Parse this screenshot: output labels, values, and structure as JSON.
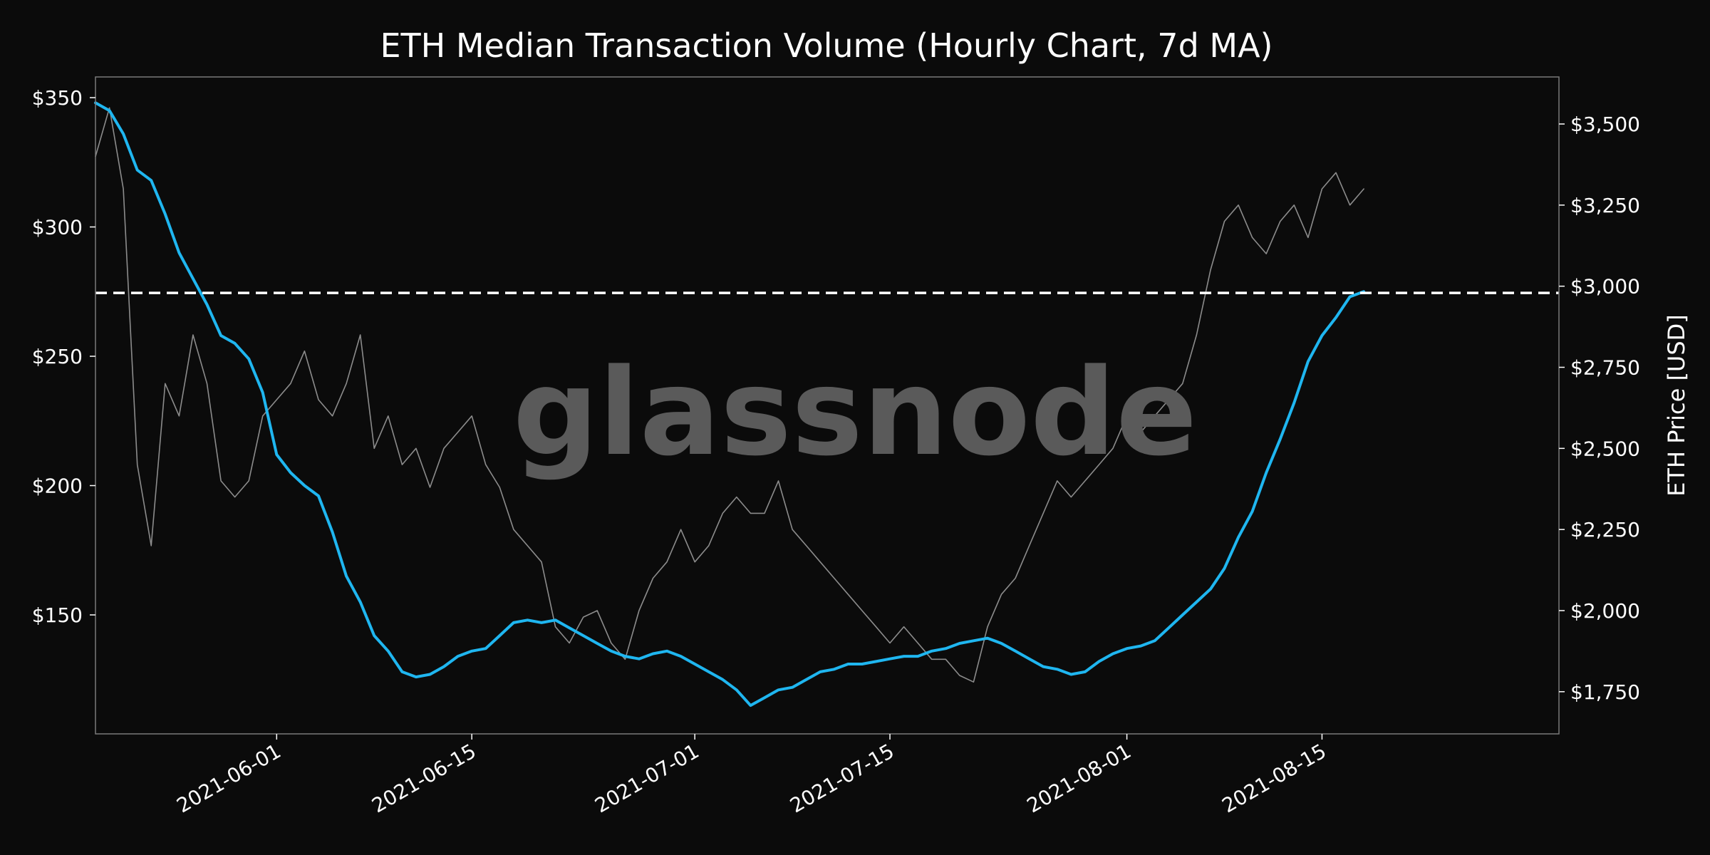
{
  "colors": {
    "background": "#0b0b0b",
    "volume_line": "#1fb6f0",
    "price_line": "#8c8c8c",
    "threshold_line": "#ffffff",
    "text": "#ffffff",
    "frame": "#7a7a7a",
    "watermark": "#5a5a5a"
  },
  "watermark": "glassnode",
  "chart_data": {
    "type": "line",
    "title": "ETH Median Transaction Volume (Hourly Chart, 7d MA)",
    "xlabel": "",
    "y_left_label": "",
    "y_right_label": "ETH Price [USD]",
    "x_range": [
      "2021-05-19",
      "2021-09-01"
    ],
    "y_left_range": [
      104,
      358
    ],
    "y_right_range": [
      1620,
      3645
    ],
    "x_ticks": [
      "2021-06-01",
      "2021-06-15",
      "2021-07-01",
      "2021-07-15",
      "2021-08-01",
      "2021-08-15"
    ],
    "y_left_ticks": [
      {
        "value": 150,
        "label": "$150"
      },
      {
        "value": 200,
        "label": "$200"
      },
      {
        "value": 250,
        "label": "$250"
      },
      {
        "value": 300,
        "label": "$300"
      },
      {
        "value": 350,
        "label": "$350"
      }
    ],
    "y_right_ticks": [
      {
        "value": 1750,
        "label": "$1,750"
      },
      {
        "value": 2000,
        "label": "$2,000"
      },
      {
        "value": 2250,
        "label": "$2,250"
      },
      {
        "value": 2500,
        "label": "$2,500"
      },
      {
        "value": 2750,
        "label": "$2,750"
      },
      {
        "value": 3000,
        "label": "$3,000"
      },
      {
        "value": 3250,
        "label": "$3,250"
      },
      {
        "value": 3500,
        "label": "$3,500"
      }
    ],
    "threshold": {
      "value": 274.5,
      "axis": "left",
      "style": "dashed"
    },
    "grid": false,
    "series": [
      {
        "role": "volume",
        "axis": "left",
        "x": [
          "2021-05-19",
          "2021-05-20",
          "2021-05-21",
          "2021-05-22",
          "2021-05-23",
          "2021-05-24",
          "2021-05-25",
          "2021-05-26",
          "2021-05-27",
          "2021-05-28",
          "2021-05-29",
          "2021-05-30",
          "2021-05-31",
          "2021-06-01",
          "2021-06-02",
          "2021-06-03",
          "2021-06-04",
          "2021-06-05",
          "2021-06-06",
          "2021-06-07",
          "2021-06-08",
          "2021-06-09",
          "2021-06-10",
          "2021-06-11",
          "2021-06-12",
          "2021-06-13",
          "2021-06-14",
          "2021-06-15",
          "2021-06-16",
          "2021-06-17",
          "2021-06-18",
          "2021-06-19",
          "2021-06-20",
          "2021-06-21",
          "2021-06-22",
          "2021-06-23",
          "2021-06-24",
          "2021-06-25",
          "2021-06-26",
          "2021-06-27",
          "2021-06-28",
          "2021-06-29",
          "2021-06-30",
          "2021-07-01",
          "2021-07-02",
          "2021-07-03",
          "2021-07-04",
          "2021-07-05",
          "2021-07-06",
          "2021-07-07",
          "2021-07-08",
          "2021-07-09",
          "2021-07-10",
          "2021-07-11",
          "2021-07-12",
          "2021-07-13",
          "2021-07-14",
          "2021-07-15",
          "2021-07-16",
          "2021-07-17",
          "2021-07-18",
          "2021-07-19",
          "2021-07-20",
          "2021-07-21",
          "2021-07-22",
          "2021-07-23",
          "2021-07-24",
          "2021-07-25",
          "2021-07-26",
          "2021-07-27",
          "2021-07-28",
          "2021-07-29",
          "2021-07-30",
          "2021-07-31",
          "2021-08-01",
          "2021-08-02",
          "2021-08-03",
          "2021-08-04",
          "2021-08-05",
          "2021-08-06",
          "2021-08-07",
          "2021-08-08",
          "2021-08-09",
          "2021-08-10",
          "2021-08-11",
          "2021-08-12",
          "2021-08-13",
          "2021-08-14",
          "2021-08-15",
          "2021-08-16",
          "2021-08-17",
          "2021-08-18"
        ],
        "values": [
          348,
          345,
          336,
          322,
          318,
          305,
          290,
          280,
          270,
          258,
          255,
          249,
          236,
          212,
          205,
          200,
          196,
          182,
          165,
          155,
          142,
          136,
          128,
          126,
          127,
          130,
          134,
          136,
          137,
          142,
          147,
          148,
          147,
          148,
          145,
          142,
          139,
          136,
          134,
          133,
          135,
          136,
          134,
          131,
          128,
          125,
          121,
          115,
          118,
          121,
          122,
          125,
          128,
          129,
          131,
          131,
          132,
          133,
          134,
          134,
          136,
          137,
          139,
          140,
          141,
          139,
          136,
          133,
          130,
          129,
          127,
          128,
          132,
          135,
          137,
          138,
          140,
          145,
          150,
          155,
          160,
          168,
          180,
          190,
          205,
          218,
          232,
          248,
          258,
          265,
          273,
          275
        ]
      },
      {
        "role": "price",
        "axis": "right",
        "x": [
          "2021-05-19",
          "2021-05-20",
          "2021-05-21",
          "2021-05-22",
          "2021-05-23",
          "2021-05-24",
          "2021-05-25",
          "2021-05-26",
          "2021-05-27",
          "2021-05-28",
          "2021-05-29",
          "2021-05-30",
          "2021-05-31",
          "2021-06-01",
          "2021-06-02",
          "2021-06-03",
          "2021-06-04",
          "2021-06-05",
          "2021-06-06",
          "2021-06-07",
          "2021-06-08",
          "2021-06-09",
          "2021-06-10",
          "2021-06-11",
          "2021-06-12",
          "2021-06-13",
          "2021-06-14",
          "2021-06-15",
          "2021-06-16",
          "2021-06-17",
          "2021-06-18",
          "2021-06-19",
          "2021-06-20",
          "2021-06-21",
          "2021-06-22",
          "2021-06-23",
          "2021-06-24",
          "2021-06-25",
          "2021-06-26",
          "2021-06-27",
          "2021-06-28",
          "2021-06-29",
          "2021-06-30",
          "2021-07-01",
          "2021-07-02",
          "2021-07-03",
          "2021-07-04",
          "2021-07-05",
          "2021-07-06",
          "2021-07-07",
          "2021-07-08",
          "2021-07-09",
          "2021-07-10",
          "2021-07-11",
          "2021-07-12",
          "2021-07-13",
          "2021-07-14",
          "2021-07-15",
          "2021-07-16",
          "2021-07-17",
          "2021-07-18",
          "2021-07-19",
          "2021-07-20",
          "2021-07-21",
          "2021-07-22",
          "2021-07-23",
          "2021-07-24",
          "2021-07-25",
          "2021-07-26",
          "2021-07-27",
          "2021-07-28",
          "2021-07-29",
          "2021-07-30",
          "2021-07-31",
          "2021-08-01",
          "2021-08-02",
          "2021-08-03",
          "2021-08-04",
          "2021-08-05",
          "2021-08-06",
          "2021-08-07",
          "2021-08-08",
          "2021-08-09",
          "2021-08-10",
          "2021-08-11",
          "2021-08-12",
          "2021-08-13",
          "2021-08-14",
          "2021-08-15",
          "2021-08-16",
          "2021-08-17",
          "2021-08-18"
        ],
        "values": [
          3400,
          3550,
          3300,
          2450,
          2200,
          2700,
          2600,
          2850,
          2700,
          2400,
          2350,
          2400,
          2600,
          2650,
          2700,
          2800,
          2650,
          2600,
          2700,
          2850,
          2500,
          2600,
          2450,
          2500,
          2380,
          2500,
          2550,
          2600,
          2450,
          2380,
          2250,
          2200,
          2150,
          1950,
          1900,
          1980,
          2000,
          1900,
          1850,
          2000,
          2100,
          2150,
          2250,
          2150,
          2200,
          2300,
          2350,
          2300,
          2300,
          2400,
          2250,
          2200,
          2150,
          2100,
          2050,
          2000,
          1950,
          1900,
          1950,
          1900,
          1850,
          1850,
          1800,
          1780,
          1950,
          2050,
          2100,
          2200,
          2300,
          2400,
          2350,
          2400,
          2450,
          2500,
          2600,
          2550,
          2600,
          2650,
          2700,
          2850,
          3050,
          3200,
          3250,
          3150,
          3100,
          3200,
          3250,
          3150,
          3300,
          3350,
          3250,
          3300
        ]
      }
    ]
  }
}
